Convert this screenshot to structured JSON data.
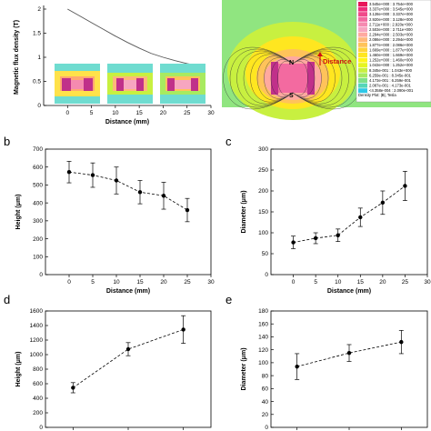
{
  "chart_data": [
    {
      "panel": "a",
      "type": "line",
      "ylabel": "Magnetic flux density (T)",
      "xlabel": "Distance (mm)",
      "xlim": [
        -5,
        30
      ],
      "ylim": [
        0,
        2.0
      ],
      "xticks": [
        0,
        5,
        10,
        15,
        20,
        25,
        30
      ],
      "yticks": [
        0,
        0.5,
        1.0,
        1.5,
        2.0
      ],
      "x": [
        0,
        2.5,
        5,
        7.5,
        10,
        12.5,
        15,
        17.5,
        20,
        22.5,
        25,
        26
      ],
      "y": [
        2.0,
        1.86,
        1.72,
        1.58,
        1.44,
        1.31,
        1.19,
        1.08,
        1.0,
        0.93,
        0.87,
        0.85
      ]
    },
    {
      "panel": "b",
      "type": "line",
      "ylabel": "Height (μm)",
      "xlabel": "Distance (mm)",
      "xlim": [
        -5,
        30
      ],
      "ylim": [
        0,
        700
      ],
      "xticks": [
        0,
        5,
        10,
        15,
        20,
        25,
        30
      ],
      "yticks": [
        0,
        100,
        200,
        300,
        400,
        500,
        600,
        700
      ],
      "x": [
        0,
        5,
        10,
        15,
        20,
        25
      ],
      "y": [
        572,
        555,
        525,
        460,
        440,
        360
      ],
      "err": [
        60,
        68,
        75,
        65,
        75,
        65
      ],
      "grid": false
    },
    {
      "panel": "c",
      "type": "line",
      "ylabel": "Diameter (μm)",
      "xlabel": "Distance (mm)",
      "xlim": [
        -5,
        30
      ],
      "ylim": [
        0,
        300
      ],
      "xticks": [
        0,
        5,
        10,
        15,
        20,
        25,
        30
      ],
      "yticks": [
        0,
        50,
        100,
        150,
        200,
        250,
        300
      ],
      "x": [
        0,
        5,
        10,
        15,
        20,
        25
      ],
      "y": [
        77,
        87,
        94,
        137,
        172,
        212
      ],
      "err": [
        15,
        13,
        15,
        22,
        28,
        35
      ],
      "grid": false
    },
    {
      "panel": "d",
      "type": "line",
      "ylabel": "Height (μm)",
      "ylim": [
        0,
        1600
      ],
      "yticks": [
        0,
        200,
        400,
        600,
        800,
        1000,
        1200,
        1400,
        1600
      ],
      "x": [
        1,
        2,
        3
      ],
      "y": [
        545,
        1075,
        1345
      ],
      "err": [
        70,
        90,
        190
      ]
    },
    {
      "panel": "e",
      "type": "line",
      "ylabel": "Diameter (μm)",
      "ylim": [
        0,
        180
      ],
      "yticks": [
        0,
        20,
        40,
        60,
        80,
        100,
        120,
        140,
        160,
        180
      ],
      "x": [
        1,
        2,
        3
      ],
      "y": [
        94,
        115,
        132
      ],
      "err": [
        20,
        13,
        18
      ]
    }
  ],
  "panel_letters": {
    "b": "b",
    "c": "c",
    "d": "d",
    "e": "e"
  },
  "map_labels": {
    "north": "N",
    "south": "S",
    "distance": "Distance"
  },
  "legend": [
    "3.545e+000 : 3.754e+000",
    "3.337e+000 : 3.545e+000",
    "3.128e+000 : 3.337e+000",
    "2.920e+000 : 3.128e+000",
    "2.711e+000 : 2.920e+000",
    "2.503e+000 : 2.711e+000",
    "2.294e+000 : 2.503e+000",
    "2.086e+000 : 2.294e+000",
    "1.877e+000 : 2.086e+000",
    "1.669e+000 : 1.877e+000",
    "1.460e+000 : 1.669e+000",
    "1.252e+000 : 1.460e+000",
    "1.043e+000 : 1.252e+000",
    "8.345e-001 : 1.043e+000",
    "6.259e-001 : 8.345e-001",
    "4.173e-001 : 6.259e-001",
    "2.087e-001 : 4.173e-001",
    "<4.358e-004 : 2.090e-001"
  ],
  "legend_footer": [
    "Density Plot: |B|, Tesla"
  ],
  "legend_colors": [
    "#e8155a",
    "#ef2d7a",
    "#f04a8a",
    "#f36aa0",
    "#f58ab0",
    "#f7a6c0",
    "#ffa9a0",
    "#ffb87a",
    "#ffc35a",
    "#ffd33a",
    "#ffe620",
    "#fff41a",
    "#e6f520",
    "#c8f040",
    "#a8ea60",
    "#7fe08a",
    "#55d6b8",
    "#30c8e8"
  ]
}
